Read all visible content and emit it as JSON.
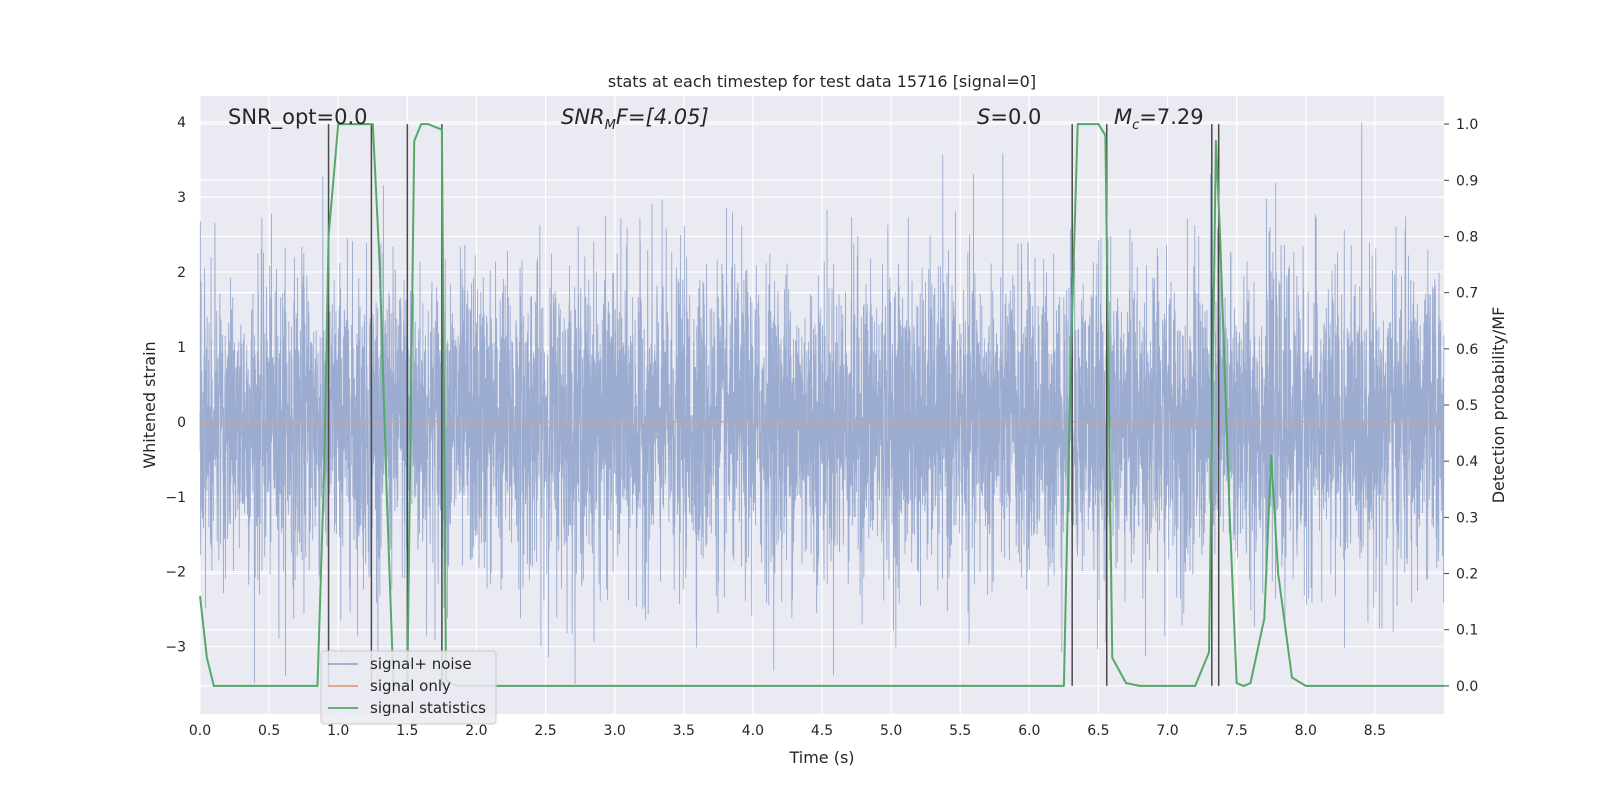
{
  "chart_data": {
    "type": "line",
    "title": "stats at each timestep for test data 15716 [signal=0]",
    "xlabel": "Time (s)",
    "ylabel": "Whitened strain",
    "y2label": "Detection probability/MF",
    "xlim": [
      0.0,
      9.0
    ],
    "ylim": [
      -3.9,
      4.35
    ],
    "y2lim": [
      -0.05,
      1.05
    ],
    "xticks": [
      "0.0",
      "0.5",
      "1.0",
      "1.5",
      "2.0",
      "2.5",
      "3.0",
      "3.5",
      "4.0",
      "4.5",
      "5.0",
      "5.5",
      "6.0",
      "6.5",
      "7.0",
      "7.5",
      "8.0",
      "8.5"
    ],
    "yticks": [
      "−3",
      "−2",
      "−1",
      "0",
      "1",
      "2",
      "3",
      "4"
    ],
    "y2ticks": [
      "0.0",
      "0.1",
      "0.2",
      "0.3",
      "0.4",
      "0.5",
      "0.6",
      "0.7",
      "0.8",
      "0.9",
      "1.0"
    ],
    "grid": true,
    "legend_position": "lower-left",
    "annotations": {
      "snr_opt": "SNR_opt=0.0",
      "snr_mf_base": "SNR",
      "snr_mf_sub": "M",
      "snr_mf_rest": "F=[4.05]",
      "s_var": "S",
      "s_rest": "=0.0",
      "mc_var": "M",
      "mc_sub": "c",
      "mc_rest": "=7.29"
    },
    "series": [
      {
        "name": "signal+ noise",
        "color": "#97a9cd",
        "style": "dense-noise",
        "sigma": 1.0,
        "approx_envelope": [
          -3.5,
          4.0
        ]
      },
      {
        "name": "signal only",
        "color": "#dd9f86",
        "x": [
          0.0,
          9.0
        ],
        "y": [
          0.0,
          0.0
        ]
      },
      {
        "name": "signal statistics",
        "color": "#55a868",
        "axis": "right",
        "x": [
          0.0,
          0.05,
          0.1,
          0.2,
          0.3,
          0.5,
          0.7,
          0.85,
          0.9,
          0.93,
          1.0,
          1.1,
          1.2,
          1.25,
          1.3,
          1.35,
          1.4,
          1.45,
          1.5,
          1.55,
          1.6,
          1.65,
          1.7,
          1.75,
          1.78,
          1.85,
          2.0,
          2.2,
          2.5,
          3.0,
          4.0,
          5.0,
          6.0,
          6.25,
          6.3,
          6.35,
          6.4,
          6.5,
          6.55,
          6.6,
          6.7,
          6.8,
          7.0,
          7.2,
          7.3,
          7.35,
          7.38,
          7.45,
          7.5,
          7.55,
          7.6,
          7.7,
          7.75,
          7.8,
          7.9,
          8.0,
          8.5,
          9.0
        ],
        "y": [
          0.16,
          0.05,
          0.0,
          0.0,
          0.0,
          0.0,
          0.0,
          0.0,
          0.4,
          0.8,
          1.0,
          1.0,
          1.0,
          1.0,
          0.75,
          0.35,
          0.0,
          0.0,
          0.0,
          0.97,
          1.0,
          1.0,
          0.995,
          0.99,
          0.01,
          0.0,
          0.0,
          0.0,
          0.0,
          0.0,
          0.0,
          0.0,
          0.0,
          0.0,
          0.58,
          1.0,
          1.0,
          1.0,
          0.98,
          0.05,
          0.005,
          0.0,
          0.0,
          0.0,
          0.06,
          0.97,
          0.8,
          0.3,
          0.005,
          0.0,
          0.005,
          0.12,
          0.41,
          0.2,
          0.015,
          0.0,
          0.0,
          0.0
        ]
      }
    ],
    "vertical_markers": [
      0.93,
      1.24,
      1.5,
      1.75,
      6.31,
      6.56,
      7.32,
      7.37
    ]
  }
}
